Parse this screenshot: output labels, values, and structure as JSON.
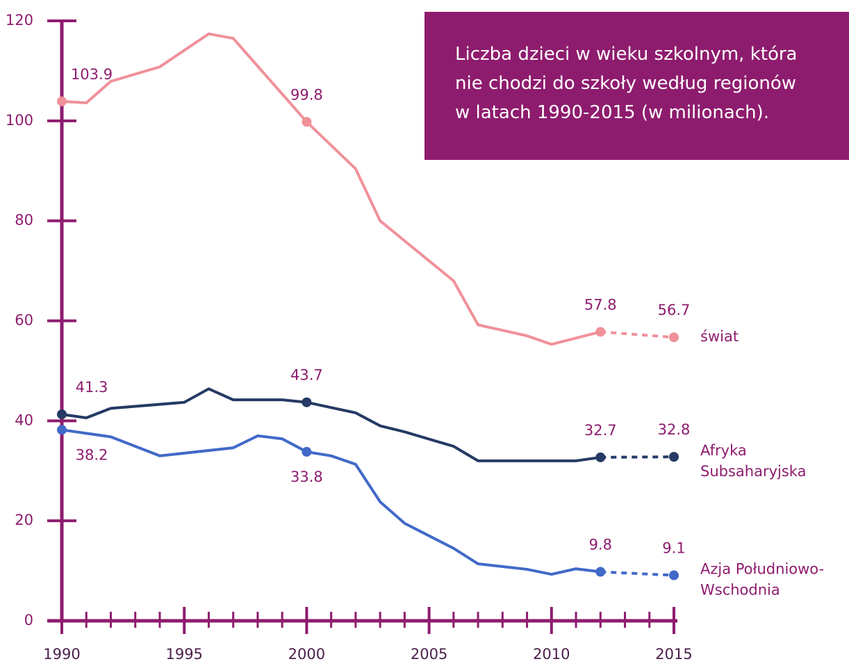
{
  "chart_data": {
    "type": "line",
    "title": [
      "Liczba dzieci w wieku szkolnym, która",
      "nie chodzi do szkoły według regionów",
      "w latach 1990-2015 (w milionach)."
    ],
    "xlim": [
      1990,
      2015
    ],
    "xticks": [
      1990,
      1995,
      2000,
      2005,
      2010,
      2015
    ],
    "xminorticks": [
      1991,
      1992,
      1993,
      1994,
      1996,
      1997,
      1998,
      1999,
      2001,
      2002,
      2003,
      2004,
      2006,
      2007,
      2008,
      2009,
      2011,
      2012,
      2013,
      2014
    ],
    "ylim": [
      0,
      120
    ],
    "yticks": [
      0,
      20,
      40,
      60,
      80,
      100,
      120
    ],
    "projection_start": 2012,
    "series": [
      {
        "name": "świat",
        "color": "#f0919a",
        "x": [
          1990,
          1991,
          1992,
          1994,
          1996,
          1997,
          2000,
          2002,
          2003,
          2006,
          2007,
          2009,
          2010,
          2012,
          2015
        ],
        "values": [
          103.9,
          103.6,
          107.9,
          110.8,
          117.4,
          116.5,
          99.8,
          90.4,
          80,
          68,
          59.2,
          57,
          55.3,
          57.8,
          56.7
        ],
        "value_labels": [
          "103.9",
          null,
          null,
          null,
          null,
          null,
          "99.8",
          null,
          null,
          null,
          null,
          null,
          null,
          "57.8",
          "56.7"
        ]
      },
      {
        "name": "Afryka Subsaharyjska",
        "color": "#253a64",
        "x": [
          1990,
          1991,
          1992,
          1995,
          1996,
          1997,
          1999,
          2000,
          2002,
          2003,
          2004,
          2006,
          2007,
          2011,
          2012,
          2015
        ],
        "values": [
          41.3,
          40.6,
          42.5,
          43.7,
          46.4,
          44.2,
          44.2,
          43.7,
          41.6,
          39,
          37.8,
          34.9,
          32,
          32,
          32.7,
          32.8
        ],
        "value_labels": [
          "41.3",
          null,
          null,
          null,
          null,
          null,
          null,
          "43.7",
          null,
          null,
          null,
          null,
          null,
          null,
          "32.7",
          "32.8"
        ]
      },
      {
        "name": "Azja Południowo-Wschodnia",
        "color": "#4169c8",
        "x": [
          1990,
          1992,
          1994,
          1997,
          1998,
          1999,
          2000,
          2001,
          2002,
          2003,
          2004,
          2006,
          2007,
          2009,
          2010,
          2011,
          2012,
          2015
        ],
        "values": [
          38.2,
          36.8,
          33,
          34.6,
          37,
          36.4,
          33.8,
          33,
          31.3,
          23.8,
          19.5,
          14.5,
          11.4,
          10.3,
          9.3,
          10.4,
          9.8,
          9.1
        ],
        "value_labels": [
          "38.2",
          null,
          null,
          null,
          null,
          null,
          "33.8",
          null,
          null,
          null,
          null,
          null,
          null,
          null,
          null,
          null,
          "9.8",
          "9.1"
        ]
      }
    ]
  }
}
